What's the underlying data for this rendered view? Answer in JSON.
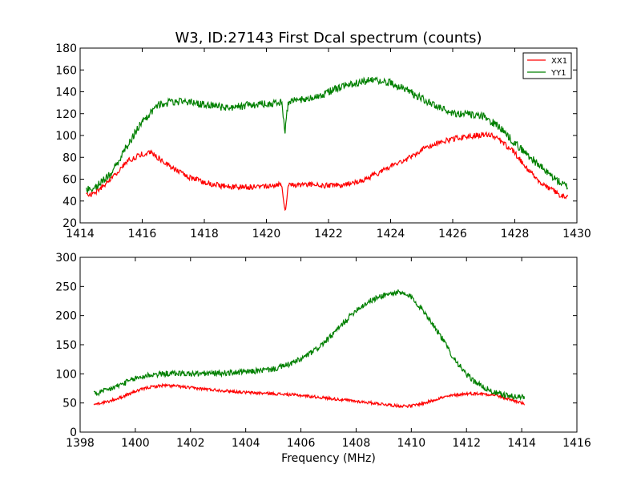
{
  "figure": {
    "title": "W3, ID:27143 First Dcal spectrum (counts)"
  },
  "chart_data": [
    {
      "type": "line",
      "title": "W3, ID:27143 First Dcal spectrum (counts)",
      "xlabel": "",
      "ylabel": "",
      "xlim": [
        1414,
        1430
      ],
      "ylim": [
        20,
        180
      ],
      "xticks": [
        1414,
        1416,
        1418,
        1420,
        1422,
        1424,
        1426,
        1428,
        1430
      ],
      "yticks": [
        20,
        40,
        60,
        80,
        100,
        120,
        140,
        160,
        180
      ],
      "grid": false,
      "legend": "top-right",
      "series": [
        {
          "name": "XX1",
          "color": "#ff0000",
          "x": [
            1414.2,
            1414.5,
            1415.0,
            1415.5,
            1416.0,
            1416.3,
            1416.5,
            1417.0,
            1417.5,
            1418.0,
            1418.5,
            1419.0,
            1419.5,
            1420.0,
            1420.5,
            1420.6,
            1420.7,
            1421.0,
            1421.5,
            1422.0,
            1422.5,
            1423.0,
            1423.5,
            1424.0,
            1424.5,
            1425.0,
            1425.5,
            1426.0,
            1426.5,
            1427.0,
            1427.3,
            1427.5,
            1428.0,
            1428.5,
            1429.0,
            1429.5,
            1429.7
          ],
          "y": [
            45,
            48,
            60,
            76,
            83,
            84,
            80,
            70,
            62,
            57,
            54,
            53,
            53,
            54,
            55,
            30,
            54,
            55,
            55,
            54,
            55,
            58,
            64,
            72,
            78,
            87,
            93,
            97,
            99,
            101,
            100,
            96,
            84,
            66,
            53,
            45,
            44
          ],
          "noise": 2.5
        },
        {
          "name": "YY1",
          "color": "#008000",
          "x": [
            1414.2,
            1414.5,
            1415.0,
            1415.5,
            1416.0,
            1416.5,
            1417.0,
            1417.5,
            1418.0,
            1418.5,
            1419.0,
            1419.5,
            1420.0,
            1420.5,
            1420.6,
            1420.7,
            1421.0,
            1421.5,
            1422.0,
            1422.5,
            1423.0,
            1423.5,
            1424.0,
            1424.5,
            1425.0,
            1425.5,
            1426.0,
            1426.5,
            1427.0,
            1427.5,
            1428.0,
            1428.5,
            1429.0,
            1429.5,
            1429.7
          ],
          "y": [
            51,
            53,
            65,
            90,
            113,
            128,
            131,
            131,
            128,
            126,
            126,
            128,
            129,
            131,
            103,
            131,
            132,
            134,
            140,
            145,
            149,
            151,
            148,
            142,
            134,
            126,
            121,
            119,
            117,
            108,
            93,
            80,
            67,
            56,
            53
          ],
          "noise": 3.5
        }
      ]
    },
    {
      "type": "line",
      "title": "",
      "xlabel": "Frequency (MHz)",
      "ylabel": "",
      "xlim": [
        1398,
        1416
      ],
      "ylim": [
        0,
        300
      ],
      "xticks": [
        1398,
        1400,
        1402,
        1404,
        1406,
        1408,
        1410,
        1412,
        1414,
        1416
      ],
      "yticks": [
        0,
        50,
        100,
        150,
        200,
        250,
        300
      ],
      "grid": false,
      "legend": "none",
      "series": [
        {
          "name": "XX1",
          "color": "#ff0000",
          "x": [
            1398.5,
            1399.0,
            1399.5,
            1400.0,
            1400.5,
            1401.0,
            1401.5,
            1402.0,
            1403.0,
            1404.0,
            1405.0,
            1406.0,
            1407.0,
            1408.0,
            1409.0,
            1409.5,
            1410.0,
            1410.5,
            1411.0,
            1411.5,
            1412.0,
            1412.5,
            1413.0,
            1413.5,
            1414.0,
            1414.1
          ],
          "y": [
            48,
            52,
            60,
            70,
            77,
            80,
            79,
            76,
            72,
            68,
            66,
            63,
            58,
            53,
            48,
            45,
            45,
            50,
            58,
            63,
            66,
            66,
            64,
            57,
            50,
            48
          ],
          "noise": 2.5
        },
        {
          "name": "YY1",
          "color": "#008000",
          "x": [
            1398.5,
            1399.0,
            1399.5,
            1400.0,
            1400.5,
            1401.0,
            1401.5,
            1402.0,
            1403.0,
            1404.0,
            1405.0,
            1405.5,
            1406.0,
            1406.5,
            1407.0,
            1407.5,
            1408.0,
            1408.5,
            1409.0,
            1409.5,
            1410.0,
            1410.5,
            1411.0,
            1411.5,
            1412.0,
            1412.5,
            1413.0,
            1413.5,
            1414.0,
            1414.1
          ],
          "y": [
            65,
            72,
            82,
            92,
            98,
            100,
            101,
            100,
            101,
            103,
            108,
            115,
            125,
            140,
            160,
            185,
            210,
            225,
            235,
            240,
            232,
            205,
            170,
            130,
            98,
            80,
            68,
            62,
            60,
            60
          ],
          "noise": 5
        }
      ]
    }
  ]
}
